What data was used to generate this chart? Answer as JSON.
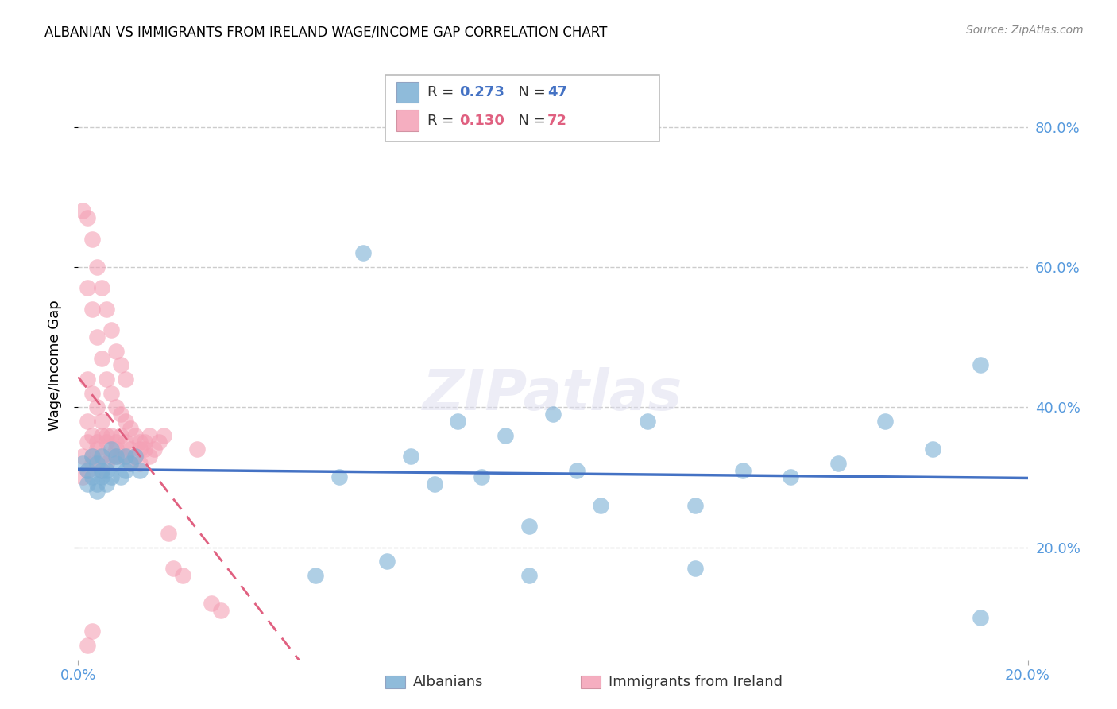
{
  "title": "ALBANIAN VS IMMIGRANTS FROM IRELAND WAGE/INCOME GAP CORRELATION CHART",
  "source": "Source: ZipAtlas.com",
  "ylabel_label": "Wage/Income Gap",
  "xlim": [
    0.0,
    0.2
  ],
  "ylim": [
    0.04,
    0.88
  ],
  "yticks": [
    0.2,
    0.4,
    0.6,
    0.8
  ],
  "ytick_labels": [
    "20.0%",
    "40.0%",
    "60.0%",
    "80.0%"
  ],
  "xticks": [
    0.0,
    0.2
  ],
  "xtick_labels": [
    "0.0%",
    "20.0%"
  ],
  "legend1_R": "0.273",
  "legend1_N": "47",
  "legend2_R": "0.130",
  "legend2_N": "72",
  "blue_color": "#7BAFD4",
  "pink_color": "#F4A0B5",
  "line_blue": "#4472C4",
  "line_pink": "#E06080",
  "tick_color": "#5599DD",
  "title_fontsize": 12,
  "axis_fontsize": 13,
  "albanians_x": [
    0.001,
    0.002,
    0.002,
    0.003,
    0.003,
    0.004,
    0.004,
    0.004,
    0.005,
    0.005,
    0.005,
    0.006,
    0.006,
    0.007,
    0.007,
    0.008,
    0.008,
    0.009,
    0.01,
    0.01,
    0.011,
    0.012,
    0.013,
    0.06,
    0.065,
    0.07,
    0.075,
    0.08,
    0.085,
    0.09,
    0.095,
    0.1,
    0.105,
    0.11,
    0.12,
    0.13,
    0.14,
    0.15,
    0.16,
    0.17,
    0.18,
    0.19,
    0.05,
    0.055,
    0.095,
    0.13,
    0.19
  ],
  "albanians_y": [
    0.32,
    0.31,
    0.29,
    0.33,
    0.3,
    0.32,
    0.29,
    0.28,
    0.31,
    0.3,
    0.33,
    0.29,
    0.31,
    0.34,
    0.3,
    0.33,
    0.32,
    0.3,
    0.33,
    0.31,
    0.32,
    0.33,
    0.31,
    0.62,
    0.18,
    0.33,
    0.29,
    0.38,
    0.3,
    0.36,
    0.23,
    0.39,
    0.31,
    0.26,
    0.38,
    0.26,
    0.31,
    0.3,
    0.32,
    0.38,
    0.34,
    0.46,
    0.16,
    0.3,
    0.16,
    0.17,
    0.1
  ],
  "ireland_x": [
    0.001,
    0.001,
    0.002,
    0.002,
    0.002,
    0.003,
    0.003,
    0.003,
    0.004,
    0.004,
    0.004,
    0.005,
    0.005,
    0.005,
    0.006,
    0.006,
    0.007,
    0.007,
    0.008,
    0.008,
    0.009,
    0.009,
    0.01,
    0.01,
    0.011,
    0.011,
    0.012,
    0.013,
    0.013,
    0.014,
    0.015,
    0.016,
    0.017,
    0.018,
    0.019,
    0.02,
    0.022,
    0.025,
    0.028,
    0.03,
    0.001,
    0.002,
    0.003,
    0.004,
    0.005,
    0.006,
    0.007,
    0.008,
    0.009,
    0.01,
    0.002,
    0.003,
    0.004,
    0.005,
    0.006,
    0.007,
    0.008,
    0.009,
    0.01,
    0.011,
    0.012,
    0.013,
    0.014,
    0.015,
    0.002,
    0.003,
    0.004,
    0.005,
    0.006,
    0.008,
    0.002,
    0.003
  ],
  "ireland_y": [
    0.33,
    0.3,
    0.38,
    0.35,
    0.31,
    0.36,
    0.33,
    0.32,
    0.35,
    0.34,
    0.32,
    0.36,
    0.33,
    0.31,
    0.35,
    0.32,
    0.36,
    0.33,
    0.35,
    0.33,
    0.36,
    0.33,
    0.35,
    0.33,
    0.34,
    0.32,
    0.33,
    0.34,
    0.32,
    0.35,
    0.36,
    0.34,
    0.35,
    0.36,
    0.22,
    0.17,
    0.16,
    0.34,
    0.12,
    0.11,
    0.68,
    0.67,
    0.64,
    0.6,
    0.57,
    0.54,
    0.51,
    0.48,
    0.46,
    0.44,
    0.57,
    0.54,
    0.5,
    0.47,
    0.44,
    0.42,
    0.4,
    0.39,
    0.38,
    0.37,
    0.36,
    0.35,
    0.34,
    0.33,
    0.44,
    0.42,
    0.4,
    0.38,
    0.36,
    0.34,
    0.06,
    0.08
  ]
}
